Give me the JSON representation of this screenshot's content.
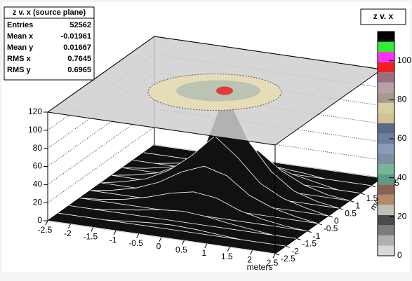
{
  "chart_data": {
    "type": "surface3d",
    "title": "z v. x",
    "xlabel": "meters",
    "ylabel": "meters",
    "x": [
      -2.5,
      -2,
      -1.5,
      -1,
      -0.5,
      0,
      0.5,
      1,
      1.5,
      2,
      2.5
    ],
    "y": [
      -2.5,
      -2,
      -1.5,
      -1,
      -0.5,
      0,
      0.5,
      1,
      1.5,
      2,
      2.5
    ],
    "z": [
      [
        0,
        0,
        0,
        0,
        0,
        0,
        0,
        0,
        0,
        0,
        0
      ],
      [
        0,
        0,
        0,
        2,
        4,
        5,
        4,
        2,
        0,
        0,
        0
      ],
      [
        0,
        0,
        3,
        6,
        10,
        12,
        10,
        6,
        3,
        0,
        0
      ],
      [
        0,
        2,
        6,
        12,
        20,
        25,
        22,
        12,
        6,
        2,
        0
      ],
      [
        0,
        4,
        10,
        20,
        35,
        45,
        38,
        20,
        10,
        4,
        0
      ],
      [
        0,
        5,
        12,
        25,
        45,
        70,
        50,
        25,
        12,
        5,
        0
      ],
      [
        0,
        4,
        10,
        22,
        40,
        110,
        60,
        30,
        12,
        4,
        0
      ],
      [
        0,
        3,
        8,
        15,
        28,
        45,
        40,
        22,
        10,
        3,
        0
      ],
      [
        0,
        0,
        4,
        8,
        14,
        20,
        18,
        10,
        5,
        0,
        0
      ],
      [
        0,
        0,
        0,
        3,
        5,
        6,
        5,
        3,
        0,
        0,
        0
      ],
      [
        0,
        0,
        0,
        0,
        0,
        0,
        0,
        0,
        0,
        0,
        0
      ]
    ],
    "xlim": [
      -2.5,
      2.5
    ],
    "ylim": [
      -2.5,
      2.5
    ],
    "zlim": [
      0,
      120
    ],
    "xticks": [
      -2.5,
      -2,
      -1.5,
      -1,
      -0.5,
      0,
      0.5,
      1,
      1.5,
      2,
      2.5
    ],
    "yticks": [
      -2.5,
      -2,
      -1.5,
      -1,
      -0.5,
      0,
      0.5,
      1,
      1.5,
      2,
      2.5
    ],
    "zticks": [
      0,
      20,
      40,
      60,
      80,
      100,
      120
    ],
    "grid": true,
    "surface_color": "#111111",
    "wire_color": "#ffffff",
    "colorbar": {
      "lim": [
        0,
        115
      ],
      "ticks": [
        0,
        20,
        40,
        60,
        80,
        100
      ],
      "colors": [
        "#d8d8d8",
        "#b0b0b0",
        "#7c7c7c",
        "#4a4a4a",
        "#bfbfb4",
        "#b7896c",
        "#8a6450",
        "#5a9a86",
        "#78b49c",
        "#7f8fa0",
        "#8a9ab8",
        "#6f7f98",
        "#5a6a8a",
        "#cfc394",
        "#d9cf9f",
        "#a89a88",
        "#b8a0a8",
        "#9a7080",
        "#ee2020",
        "#ff30ff",
        "#30ee30",
        "#000000"
      ]
    },
    "stats": {
      "title": "z v. x (source plane)",
      "rows": [
        {
          "label": "Entries",
          "value": 52562
        },
        {
          "label": "Mean x",
          "value": -0.01961
        },
        {
          "label": "Mean y",
          "value": 0.01667
        },
        {
          "label": "RMS x",
          "value": 0.7645
        },
        {
          "label": "RMS y",
          "value": 0.6965
        }
      ]
    }
  }
}
